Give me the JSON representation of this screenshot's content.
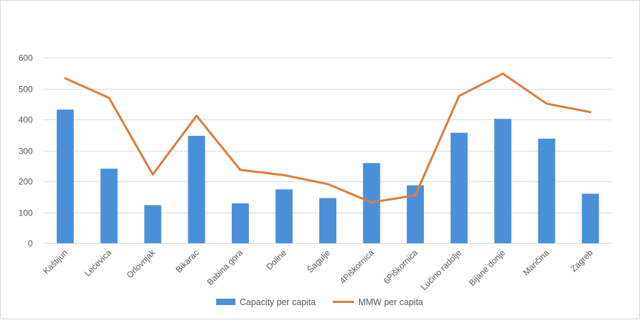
{
  "chart_data": {
    "type": "bar",
    "categories": [
      "Kaštijun",
      "Lećevica",
      "Orlovnjak",
      "Bikarac",
      "Babina gora",
      "Doline",
      "Šagulje",
      "4Piškornica",
      "6Piškornica",
      "Lučino radolje",
      "Bijane donje",
      "Maričina",
      "Zagreb"
    ],
    "ylim": [
      0,
      600
    ],
    "yticks": [
      0,
      100,
      200,
      300,
      400,
      500,
      600
    ],
    "grid": true,
    "legend_position": "bottom",
    "series": [
      {
        "name": "Capacity per capita",
        "type": "bar",
        "color": "#4a90d9",
        "values": [
          432,
          241,
          123,
          347,
          129,
          174,
          146,
          259,
          187,
          357,
          402,
          338,
          160
        ]
      },
      {
        "name": "MMW per capita",
        "type": "line",
        "color": "#e07b39",
        "values": [
          533,
          470,
          222,
          412,
          237,
          220,
          191,
          132,
          155,
          476,
          548,
          451,
          424
        ]
      }
    ]
  }
}
